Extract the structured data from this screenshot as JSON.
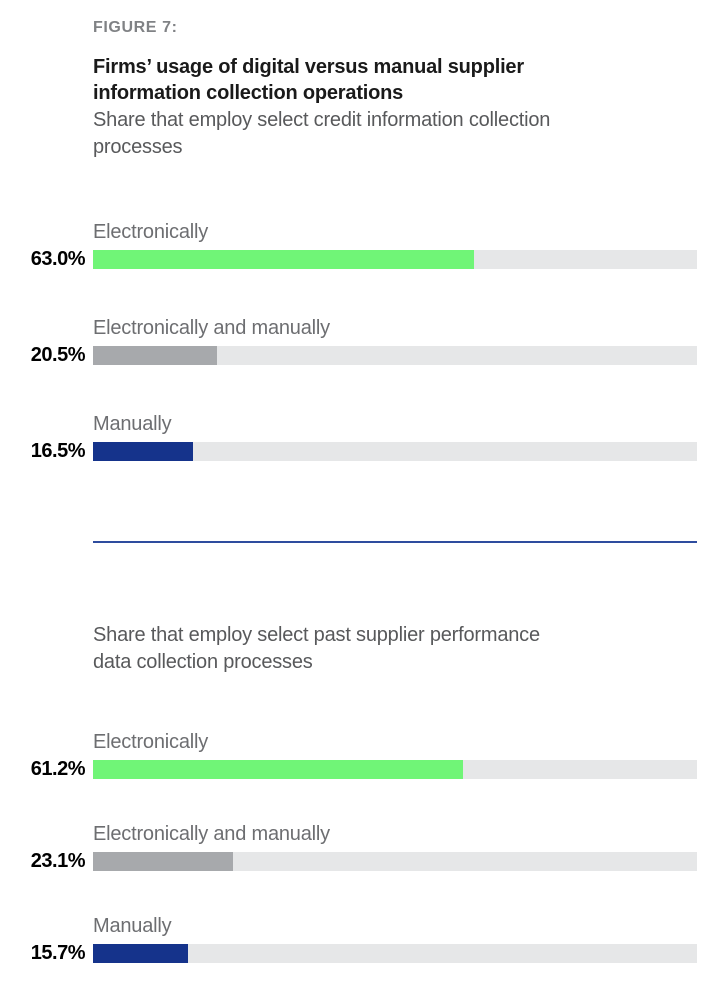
{
  "figure": {
    "label": "FIGURE 7:"
  },
  "title": "Firms’ usage of digital versus manual supplier\ninformation collection operations",
  "sections": [
    {
      "subtitle": "Share that employ select credit information collection\nprocesses"
    },
    {
      "subtitle": "Share that employ select past supplier performance\ndata collection processes"
    }
  ],
  "colors": {
    "figure_label": "#808285",
    "title": "#1a1a1a",
    "subtitle": "#58595b",
    "category_label": "#6d6e71",
    "value_label": "#000000",
    "track": "#e6e7e8",
    "divider": "#2e4c9e",
    "green": "#70f577",
    "gray": "#a7a9ac",
    "navy": "#15338b"
  },
  "chart_data": [
    {
      "type": "bar",
      "orientation": "horizontal",
      "title": "Share that employ select credit information collection processes",
      "categories": [
        "Electronically",
        "Electronically and manually",
        "Manually"
      ],
      "values": [
        63.0,
        20.5,
        16.5
      ],
      "value_labels": [
        "63.0%",
        "20.5%",
        "16.5%"
      ],
      "xlim": [
        0,
        100
      ],
      "grid": false,
      "legend": false,
      "bar_colors": [
        "#70f577",
        "#a7a9ac",
        "#15338b"
      ]
    },
    {
      "type": "bar",
      "orientation": "horizontal",
      "title": "Share that employ select past supplier performance data collection processes",
      "categories": [
        "Electronically",
        "Electronically and manually",
        "Manually"
      ],
      "values": [
        61.2,
        23.1,
        15.7
      ],
      "value_labels": [
        "61.2%",
        "23.1%",
        "15.7%"
      ],
      "xlim": [
        0,
        100
      ],
      "grid": false,
      "legend": false,
      "bar_colors": [
        "#70f577",
        "#a7a9ac",
        "#15338b"
      ]
    }
  ]
}
